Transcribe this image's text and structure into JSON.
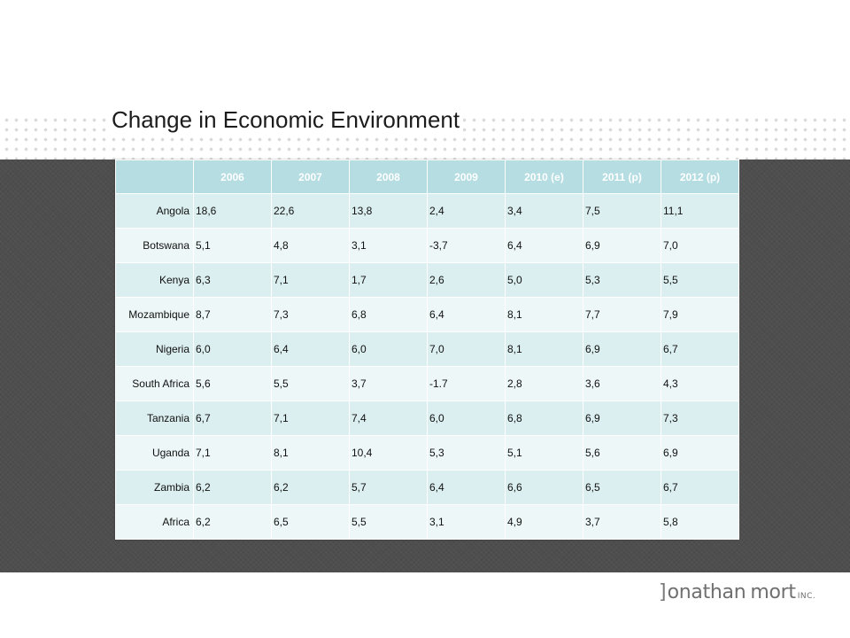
{
  "title": "Change in Economic Environment",
  "colors": {
    "header_bg": "#b5dde2",
    "row_odd": "#dbeef0",
    "row_even": "#edf7f8",
    "dark_band": "#4e4e4e"
  },
  "table": {
    "columns": [
      "",
      "2006",
      "2007",
      "2008",
      "2009",
      "2010 (e)",
      "2011 (p)",
      "2012 (p)"
    ],
    "rows": [
      [
        "Angola",
        "18,6",
        "22,6",
        "13,8",
        "2,4",
        "3,4",
        "7,5",
        "11,1"
      ],
      [
        "Botswana",
        "5,1",
        "4,8",
        "3,1",
        "-3,7",
        "6,4",
        "6,9",
        "7,0"
      ],
      [
        "Kenya",
        "6,3",
        "7,1",
        "1,7",
        "2,6",
        "5,0",
        "5,3",
        "5,5"
      ],
      [
        "Mozambique",
        "8,7",
        "7,3",
        "6,8",
        "6,4",
        "8,1",
        "7,7",
        "7,9"
      ],
      [
        "Nigeria",
        "6,0",
        "6,4",
        "6,0",
        "7,0",
        "8,1",
        "6,9",
        "6,7"
      ],
      [
        "South Africa",
        "5,6",
        "5,5",
        "3,7",
        "-1.7",
        "2,8",
        "3,6",
        "4,3"
      ],
      [
        "Tanzania",
        "6,7",
        "7,1",
        "7,4",
        "6,0",
        "6,8",
        "6,9",
        "7,3"
      ],
      [
        "Uganda",
        "7,1",
        "8,1",
        "10,4",
        "5,3",
        "5,1",
        "5,6",
        "6,9"
      ],
      [
        "Zambia",
        "6,2",
        "6,2",
        "5,7",
        "6,4",
        "6,6",
        "6,5",
        "6,7"
      ],
      [
        "Africa",
        "6,2",
        "6,5",
        "5,5",
        "3,1",
        "4,9",
        "3,7",
        "5,8"
      ]
    ]
  },
  "logo": {
    "bracket": "]",
    "name_first": "onathan",
    "name_last": "mort",
    "suffix": "INC."
  }
}
